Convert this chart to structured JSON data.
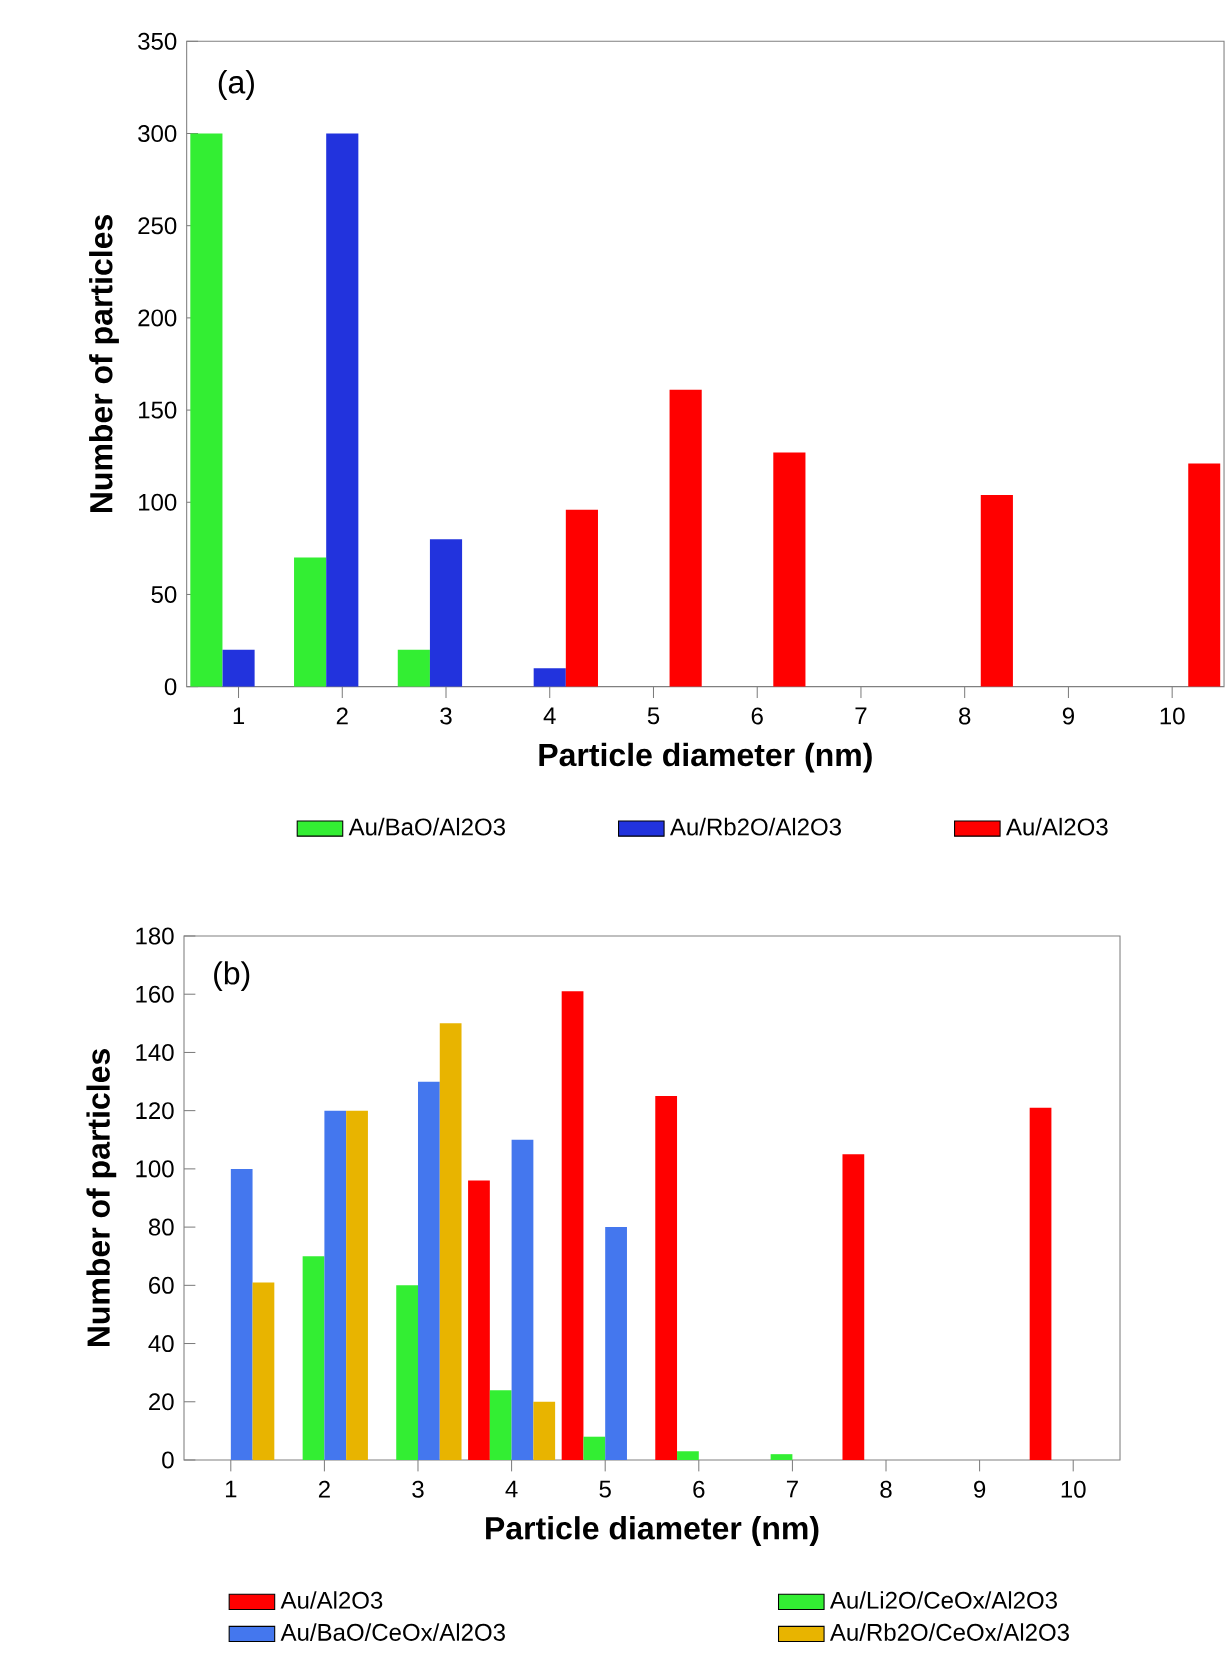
{
  "chart_data": [
    {
      "type": "bar",
      "xlabel": "Particle diameter (nm)",
      "ylabel": "Number of particles",
      "annotations": [
        "(a)"
      ],
      "categories": [
        "1",
        "2",
        "3",
        "4",
        "5",
        "6",
        "7",
        "8",
        "9",
        "10"
      ],
      "series": [
        {
          "name": "Au/BaO/Al2O3",
          "color": "#33ee33",
          "values": [
            300,
            70,
            20,
            0,
            0,
            0,
            0,
            0,
            0,
            0
          ]
        },
        {
          "name": "Au/Rb2O/Al2O3",
          "color": "#2233dd",
          "values": [
            20,
            300,
            80,
            10,
            0,
            0,
            0,
            0,
            0,
            0
          ]
        },
        {
          "name": "Au/Al2O3",
          "color": "#ff0000",
          "values": [
            0,
            0,
            0,
            96,
            161,
            127,
            0,
            104,
            0,
            121
          ]
        }
      ],
      "ylim": [
        0,
        350
      ],
      "yticks": [
        0,
        50,
        100,
        150,
        200,
        250,
        300,
        350
      ],
      "legend": "bottom"
    },
    {
      "type": "bar",
      "xlabel": "Particle diameter (nm)",
      "ylabel": "Number of particles",
      "annotations": [
        "(b)"
      ],
      "categories": [
        "1",
        "2",
        "3",
        "4",
        "5",
        "6",
        "7",
        "8",
        "9",
        "10"
      ],
      "series": [
        {
          "name": "Au/Al2O3",
          "color": "#ff0000",
          "values": [
            0,
            0,
            0,
            96,
            161,
            125,
            0,
            105,
            0,
            121
          ]
        },
        {
          "name": "Au/Li2O/CeOx/Al2O3",
          "color": "#33ee33",
          "values": [
            0,
            70,
            60,
            24,
            8,
            3,
            2,
            0,
            0,
            0
          ]
        },
        {
          "name": "Au/BaO/CeOx/Al2O3",
          "color": "#4477ee",
          "values": [
            100,
            120,
            130,
            110,
            80,
            0,
            0,
            0,
            0,
            0
          ]
        },
        {
          "name": "Au/Rb2O/CeOx/Al2O3",
          "color": "#e8b400",
          "values": [
            61,
            120,
            150,
            20,
            0,
            0,
            0,
            0,
            0,
            0
          ]
        }
      ],
      "ylim": [
        0,
        180
      ],
      "yticks": [
        0,
        20,
        40,
        60,
        80,
        100,
        120,
        140,
        160,
        180
      ],
      "legend": "bottom"
    }
  ]
}
